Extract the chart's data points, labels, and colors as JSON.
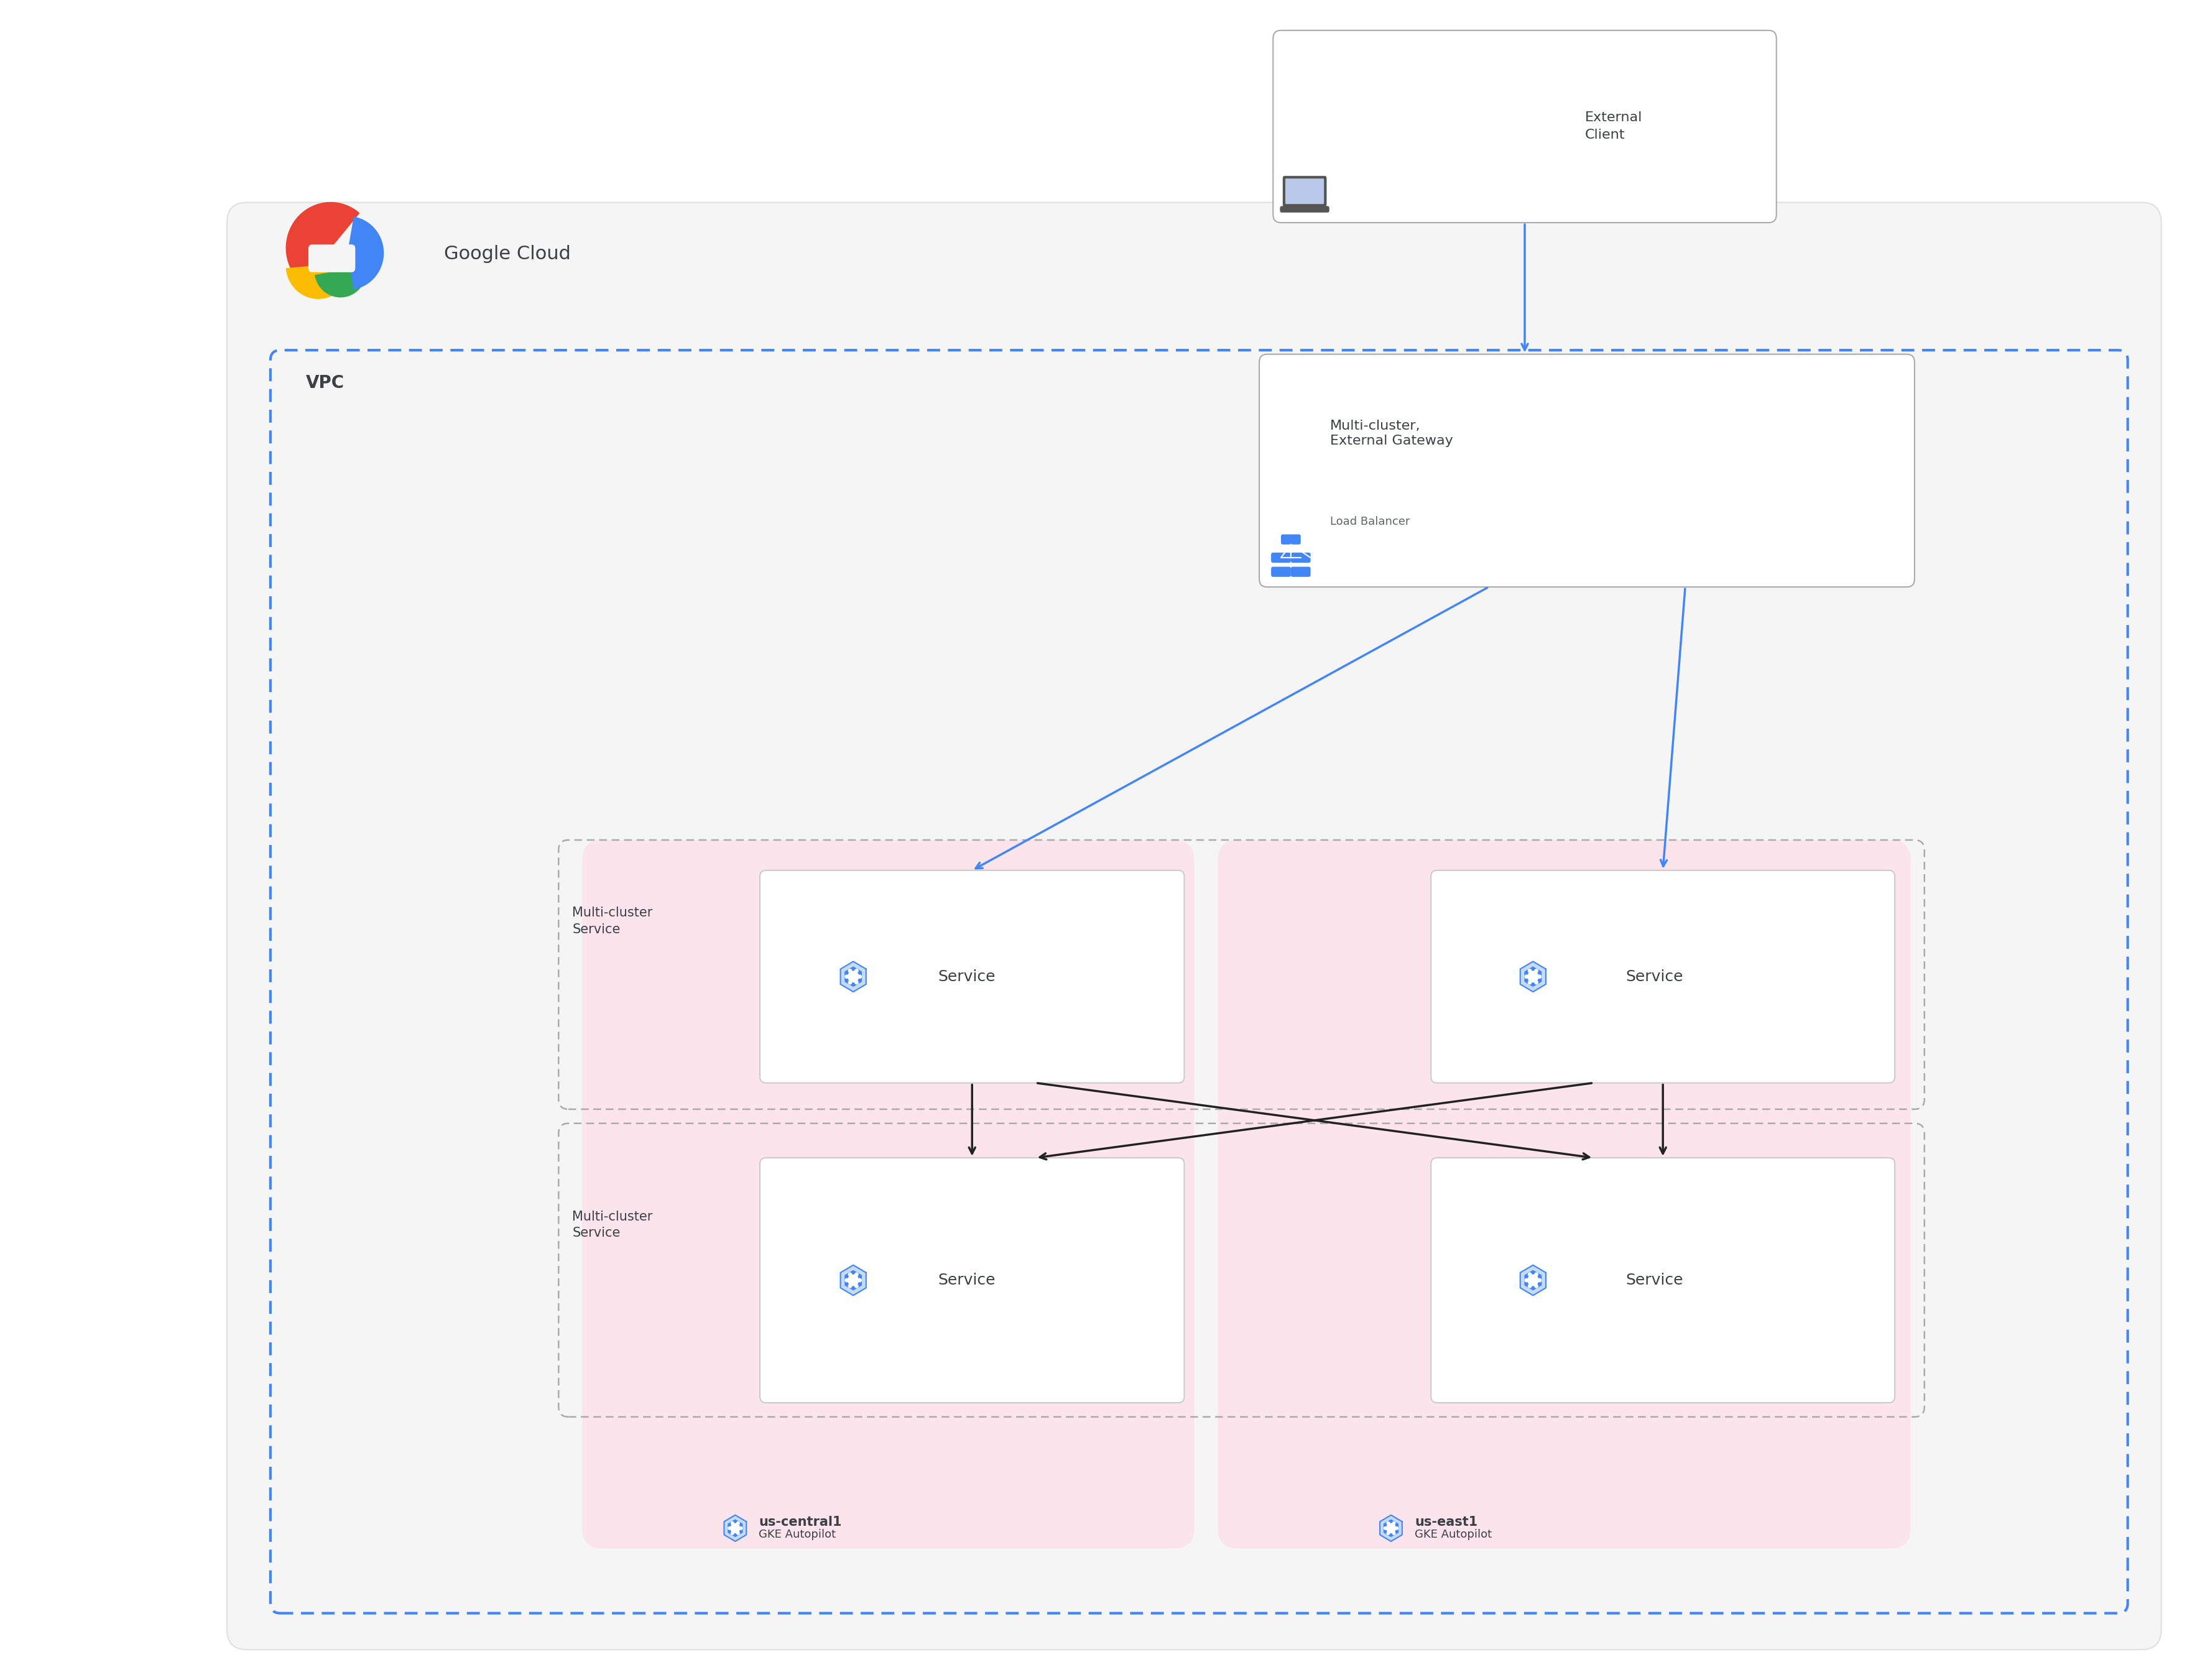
{
  "bg_color": "#ffffff",
  "gc_bg_color": "#f5f5f5",
  "vpc_border_color": "#4285F4",
  "vpc_label": "VPC",
  "google_cloud_label": "Google Cloud",
  "cluster_bg_color": "#fce4ec",
  "mcs_border_color": "#aaaaaa",
  "mcs_label": "Multi-cluster\nService",
  "service_label": "Service",
  "arrow_color_blue": "#4285F4",
  "arrow_color_black": "#222222",
  "ext_client_label": "External\nClient",
  "gateway_label": "Multi-cluster,\nExternal Gateway",
  "gateway_sublabel": "Load Balancer",
  "cluster1_label": "us-central1",
  "cluster1_sublabel": "GKE Autopilot",
  "cluster2_label": "us-east1",
  "cluster2_sublabel": "GKE Autopilot",
  "icon_color_blue": "#4285F4",
  "text_color_dark": "#3c4043",
  "text_color_gray": "#5f6368"
}
